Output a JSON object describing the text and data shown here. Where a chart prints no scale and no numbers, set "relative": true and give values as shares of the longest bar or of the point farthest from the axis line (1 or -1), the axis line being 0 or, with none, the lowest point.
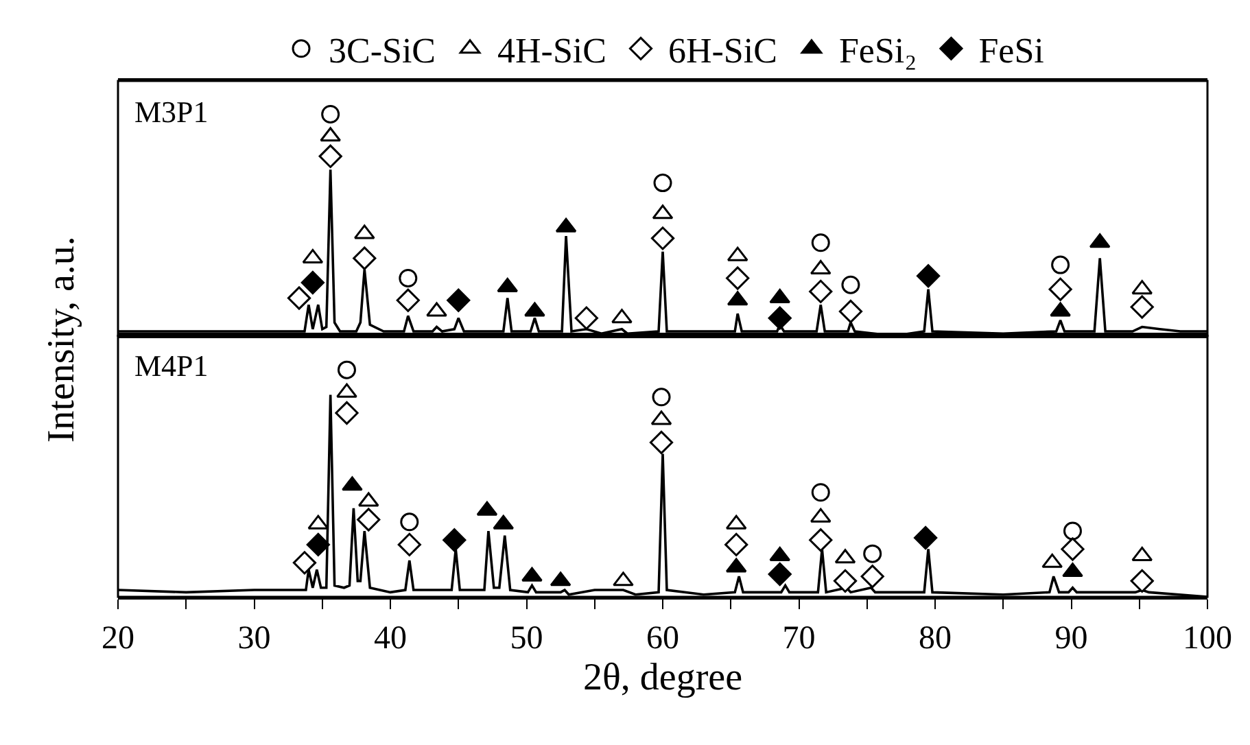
{
  "chart_data": [
    {
      "type": "line",
      "relative": true,
      "ylabel": "Intensity, a.u.",
      "legend": "top",
      "tick_labels": false,
      "xlim": [
        20,
        100
      ],
      "annotations": [
        "M3P1"
      ],
      "series": [
        {
          "color": "#000000",
          "x": [
            20,
            25,
            30,
            33,
            33.7,
            34.0,
            34.3,
            34.7,
            35.0,
            35.3,
            35.6,
            35.9,
            36.3,
            37.5,
            37.8,
            38.1,
            38.5,
            39.5,
            41.0,
            41.3,
            41.7,
            43.1,
            43.4,
            43.8,
            44.7,
            45.0,
            45.4,
            48.3,
            48.6,
            48.9,
            50.3,
            50.6,
            50.9,
            52.6,
            52.9,
            53.3,
            54.4,
            55.5,
            57.0,
            57.4,
            59.7,
            60.0,
            60.3,
            63,
            65.3,
            65.5,
            65.8,
            68.4,
            68.6,
            68.9,
            71.3,
            71.6,
            71.9,
            73.6,
            73.8,
            74.1,
            77,
            79.2,
            79.5,
            79.8,
            85,
            88.9,
            89.2,
            89.5,
            91.7,
            92.1,
            92.5,
            94.5,
            95.2,
            96.5,
            98,
            100
          ],
          "values": [
            0.02,
            0.02,
            0.02,
            0.02,
            0.02,
            0.14,
            0.03,
            0.14,
            0.03,
            0.04,
            0.75,
            0.06,
            0.02,
            0.02,
            0.06,
            0.3,
            0.05,
            0.02,
            0.02,
            0.09,
            0.02,
            0.02,
            0.04,
            0.02,
            0.03,
            0.08,
            0.02,
            0.02,
            0.17,
            0.02,
            0.02,
            0.08,
            0.02,
            0.02,
            0.45,
            0.02,
            0.03,
            0.01,
            0.03,
            0.01,
            0.02,
            0.38,
            0.02,
            0.02,
            0.02,
            0.1,
            0.02,
            0.02,
            0.05,
            0.02,
            0.02,
            0.14,
            0.02,
            0.02,
            0.06,
            0.02,
            0,
            0.02,
            0.21,
            0.02,
            0.01,
            0.02,
            0.07,
            0.02,
            0.02,
            0.35,
            0.02,
            0.02,
            0.04,
            0.03,
            0.02,
            0.02
          ]
        },
        {
          "type": "scatter",
          "name": "3C-SiC",
          "color": "#ffffff",
          "marker": "circle",
          "x": [
            35.6,
            41.3,
            60.0,
            71.6,
            73.8,
            89.2
          ],
          "values": [
            1,
            0.26,
            0.69,
            0.42,
            0.23,
            0.32
          ]
        },
        {
          "type": "scatter",
          "name": "4H-SiC",
          "color": "#ffffff",
          "marker": "triangle",
          "x": [
            34.3,
            35.6,
            38.1,
            43.4,
            57.0,
            60.0,
            65.5,
            71.6,
            95.2
          ],
          "values": [
            0.35,
            0.9,
            0.46,
            0.11,
            0.08,
            0.55,
            0.36,
            0.3,
            0.21
          ]
        },
        {
          "type": "scatter",
          "name": "6H-SiC",
          "color": "#ffffff",
          "marker": "diamond",
          "x": [
            33.3,
            35.6,
            38.1,
            41.3,
            54.4,
            60.0,
            65.5,
            71.6,
            73.8,
            89.2,
            95.2
          ],
          "values": [
            0.17,
            0.81,
            0.35,
            0.16,
            0.08,
            0.44,
            0.26,
            0.2,
            0.11,
            0.21,
            0.13
          ]
        },
        {
          "type": "scatter",
          "name": "FeSi₂",
          "color": "#000000",
          "marker": "triangle",
          "x": [
            48.6,
            50.6,
            52.9,
            65.5,
            68.6,
            89.2,
            92.1
          ],
          "values": [
            0.22,
            0.11,
            0.49,
            0.16,
            0.17,
            0.11,
            0.42
          ]
        },
        {
          "type": "scatter",
          "name": "FeSi",
          "color": "#000000",
          "marker": "diamond",
          "x": [
            34.3,
            45.0,
            68.6,
            79.5
          ],
          "values": [
            0.24,
            0.16,
            0.08,
            0.27
          ]
        }
      ]
    },
    {
      "type": "line",
      "relative": true,
      "xlabel": "2θ, degree",
      "tick_labels": "x",
      "xlim": [
        20,
        100
      ],
      "xticks": [
        20,
        {
          "value": 25,
          "label": null
        },
        30,
        {
          "value": 35,
          "label": null
        },
        40,
        {
          "value": 45,
          "label": null
        },
        50,
        {
          "value": 55,
          "label": null
        },
        60,
        {
          "value": 65,
          "label": null
        },
        70,
        {
          "value": 75,
          "label": null
        },
        80,
        {
          "value": 85,
          "label": null
        },
        90,
        {
          "value": 95,
          "label": null
        },
        100
      ],
      "annotations": [
        "M4P1"
      ],
      "series": [
        {
          "color": "#000000",
          "x": [
            20,
            25,
            30,
            33,
            33.8,
            34.0,
            34.3,
            34.6,
            34.9,
            35.3,
            35.6,
            35.9,
            36.6,
            37.0,
            37.3,
            37.6,
            37.8,
            38.1,
            38.5,
            40,
            41.1,
            41.4,
            41.7,
            44.5,
            44.8,
            45.1,
            46.9,
            47.2,
            47.6,
            48.0,
            48.4,
            48.8,
            50.1,
            50.4,
            50.7,
            52.5,
            52.8,
            53.1,
            55,
            57.1,
            58,
            59.7,
            60.0,
            60.3,
            63,
            65.3,
            65.6,
            65.9,
            68.7,
            69.0,
            69.3,
            71.4,
            71.7,
            72.0,
            73.5,
            73.8,
            75.3,
            75.6,
            79.2,
            79.5,
            79.8,
            85,
            88.4,
            88.7,
            89.1,
            89.8,
            90.1,
            90.4,
            94.7,
            95.2,
            95.7,
            100
          ],
          "values": [
            0.03,
            0.02,
            0.03,
            0.03,
            0.03,
            0.12,
            0.04,
            0.12,
            0.04,
            0.04,
            0.89,
            0.05,
            0.04,
            0.05,
            0.39,
            0.07,
            0.07,
            0.29,
            0.04,
            0.02,
            0.03,
            0.16,
            0.03,
            0.03,
            0.21,
            0.03,
            0.03,
            0.29,
            0.04,
            0.04,
            0.27,
            0.03,
            0.02,
            0.05,
            0.02,
            0.02,
            0.03,
            0.01,
            0.03,
            0.03,
            0.01,
            0.02,
            0.63,
            0.03,
            0.01,
            0.02,
            0.09,
            0.02,
            0.02,
            0.05,
            0.02,
            0.02,
            0.21,
            0.02,
            0.04,
            0.02,
            0.04,
            0.02,
            0.02,
            0.21,
            0.02,
            0.01,
            0.02,
            0.09,
            0.02,
            0.02,
            0.04,
            0.02,
            0.02,
            0.03,
            0.02,
            0
          ]
        },
        {
          "type": "scatter",
          "color": "#ffffff",
          "marker": "circle",
          "x": [
            36.8,
            41.4,
            59.9,
            71.6,
            75.4,
            90.1
          ],
          "values": [
            1,
            0.33,
            0.88,
            0.46,
            0.19,
            0.29
          ]
        },
        {
          "type": "scatter",
          "color": "#ffffff",
          "marker": "triangle",
          "x": [
            34.7,
            36.8,
            38.4,
            57.1,
            59.9,
            65.4,
            71.6,
            73.4,
            88.6,
            95.2
          ],
          "values": [
            0.32,
            0.9,
            0.42,
            0.07,
            0.78,
            0.32,
            0.35,
            0.17,
            0.15,
            0.18
          ]
        },
        {
          "type": "scatter",
          "color": "#ffffff",
          "marker": "diamond",
          "x": [
            33.7,
            36.8,
            38.4,
            41.4,
            59.9,
            65.4,
            71.6,
            73.4,
            75.4,
            90.1,
            95.2
          ],
          "values": [
            0.15,
            0.81,
            0.34,
            0.23,
            0.68,
            0.23,
            0.25,
            0.07,
            0.09,
            0.21,
            0.07
          ]
        },
        {
          "type": "scatter",
          "color": "#000000",
          "marker": "triangle",
          "x": [
            37.2,
            47.1,
            48.3,
            50.4,
            52.5,
            65.4,
            68.6,
            90.1
          ],
          "values": [
            0.49,
            0.38,
            0.32,
            0.09,
            0.07,
            0.13,
            0.18,
            0.11
          ]
        },
        {
          "type": "scatter",
          "color": "#000000",
          "marker": "diamond",
          "x": [
            34.7,
            44.7,
            68.6,
            79.3
          ],
          "values": [
            0.23,
            0.25,
            0.1,
            0.26
          ]
        }
      ]
    }
  ]
}
